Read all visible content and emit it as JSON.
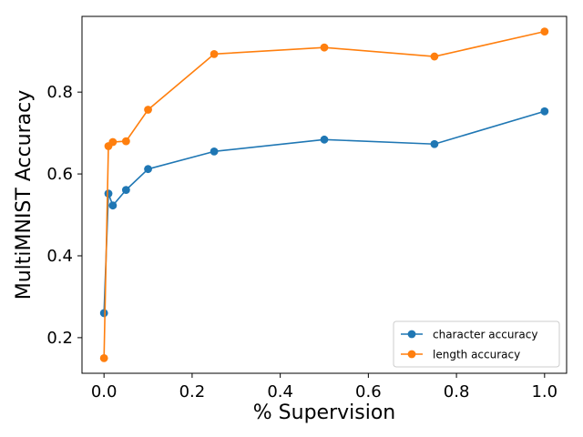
{
  "chart_data": {
    "type": "line",
    "title": "",
    "xlabel": "% Supervision",
    "ylabel": "MultiMNIST Accuracy",
    "xlim": [
      -0.05,
      1.05
    ],
    "ylim": [
      0.113,
      0.985
    ],
    "xticks": [
      0.0,
      0.2,
      0.4,
      0.6,
      0.8,
      1.0
    ],
    "xtick_labels": [
      "0.0",
      "0.2",
      "0.4",
      "0.6",
      "0.8",
      "1.0"
    ],
    "yticks": [
      0.2,
      0.4,
      0.6,
      0.8
    ],
    "ytick_labels": [
      "0.2",
      "0.4",
      "0.6",
      "0.8"
    ],
    "grid": false,
    "legend_position": "lower-right",
    "x": [
      0.0,
      0.01,
      0.02,
      0.05,
      0.1,
      0.25,
      0.5,
      0.75,
      1.0
    ],
    "series": [
      {
        "name": "character accuracy",
        "color": "#1f77b4",
        "values": [
          0.26,
          0.552,
          0.523,
          0.561,
          0.612,
          0.655,
          0.684,
          0.673,
          0.753
        ]
      },
      {
        "name": "length accuracy",
        "color": "#ff7f0e",
        "values": [
          0.15,
          0.668,
          0.678,
          0.68,
          0.757,
          0.893,
          0.909,
          0.887,
          0.948
        ]
      }
    ]
  }
}
